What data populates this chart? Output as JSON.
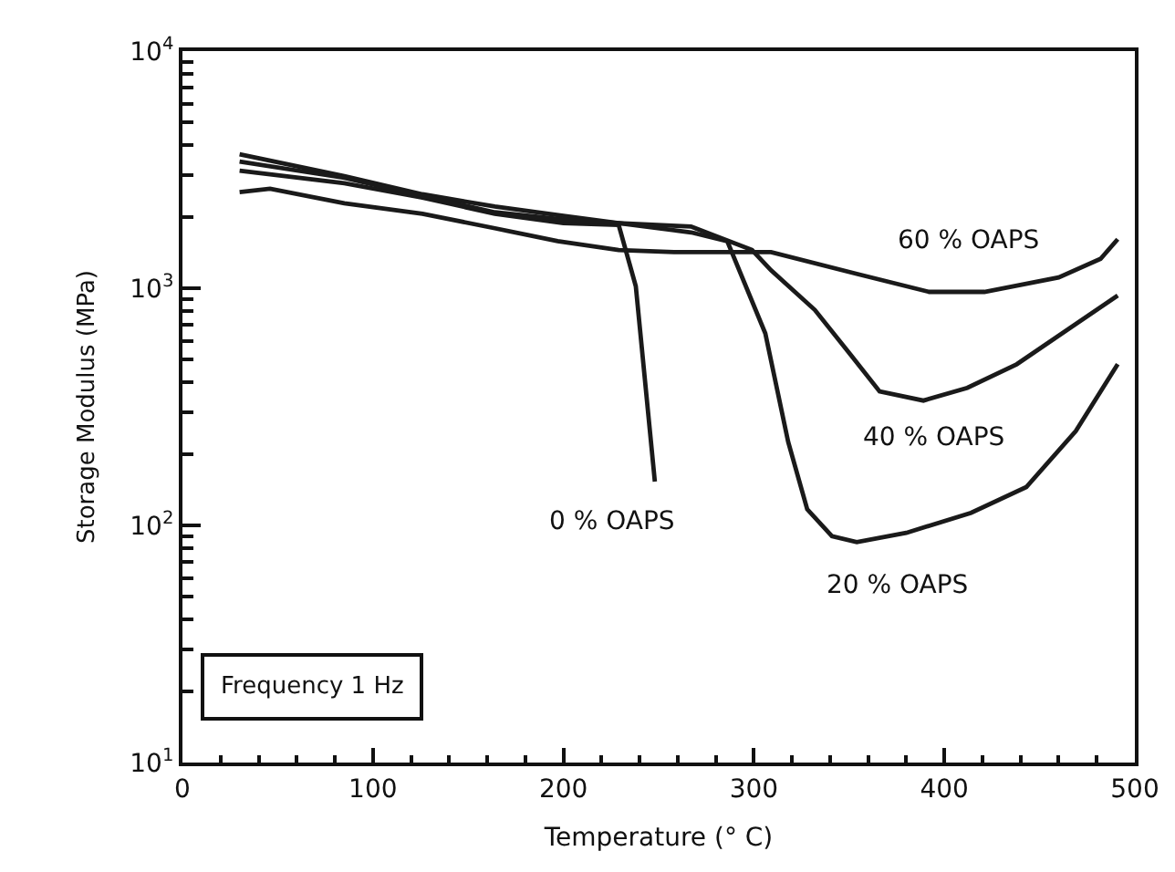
{
  "chart_data": {
    "type": "line",
    "xlabel": "Temperature (° C)",
    "ylabel": "Storage Modulus (MPa)",
    "log": "y",
    "xlim": [
      0,
      500
    ],
    "xticks": [
      0,
      100,
      200,
      300,
      400,
      500
    ],
    "ylim": [
      10,
      10000
    ],
    "yticks": [
      {
        "value": 10,
        "label": "10$^{1}$"
      },
      {
        "value": 100,
        "label": "10$^{2}$"
      },
      {
        "value": 1000,
        "label": "10$^{3}$"
      },
      {
        "value": 10000,
        "label": "10$^{4}$"
      }
    ],
    "grid": false,
    "legend": false,
    "marker": "none",
    "line_style": "solid",
    "annotations": [
      "Frequency 1 Hz"
    ],
    "series": [
      {
        "name": "0 % OAPS",
        "color": "#1a1a1a",
        "x": [
          30,
          85,
          126,
          164,
          200,
          229,
          238,
          248
        ],
        "values": [
          3130,
          2770,
          2410,
          2060,
          1880,
          1850,
          1020,
          153
        ]
      },
      {
        "name": "20 % OAPS",
        "color": "#1a1a1a",
        "x": [
          30,
          85,
          126,
          164,
          200,
          229,
          267,
          286,
          306,
          318,
          328,
          341,
          354,
          380,
          414,
          443,
          469,
          491
        ],
        "values": [
          3670,
          2970,
          2490,
          2210,
          2020,
          1880,
          1720,
          1580,
          645,
          225,
          117,
          90,
          85,
          93,
          113,
          145,
          250,
          478
        ]
      },
      {
        "name": "40 % OAPS",
        "color": "#1a1a1a",
        "x": [
          30,
          85,
          126,
          164,
          200,
          229,
          267,
          299,
          309,
          332,
          351,
          366,
          389,
          412,
          438,
          466,
          491
        ],
        "values": [
          3420,
          2920,
          2450,
          2090,
          1950,
          1880,
          1820,
          1450,
          1190,
          810,
          522,
          367,
          336,
          380,
          478,
          680,
          932
        ]
      },
      {
        "name": "60 % OAPS",
        "color": "#1a1a1a",
        "x": [
          30,
          46,
          85,
          126,
          164,
          197,
          229,
          258,
          309,
          354,
          392,
          421,
          460,
          482,
          491
        ],
        "values": [
          2540,
          2630,
          2280,
          2060,
          1790,
          1580,
          1450,
          1420,
          1420,
          1150,
          965,
          965,
          1110,
          1330,
          1610
        ]
      }
    ]
  }
}
